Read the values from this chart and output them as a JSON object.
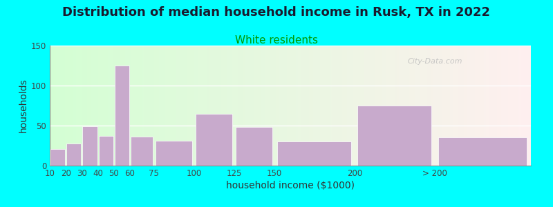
{
  "title": "Distribution of median household income in Rusk, TX in 2022",
  "subtitle": "White residents",
  "xlabel": "household income ($1000)",
  "ylabel": "households",
  "background_outer": "#00FFFF",
  "bar_color": "#C8AACC",
  "bar_edgecolor": "#FFFFFF",
  "tick_labels": [
    "10",
    "20",
    "30",
    "40",
    "50",
    "60",
    "75",
    "100",
    "125",
    "150",
    "200",
    "> 200"
  ],
  "tick_positions": [
    10,
    20,
    30,
    40,
    50,
    60,
    75,
    100,
    125,
    150,
    200,
    250
  ],
  "bar_centers": [
    15,
    25,
    35,
    45,
    55,
    67.5,
    87.5,
    112.5,
    137.5,
    175,
    225,
    280
  ],
  "bar_widths": [
    10,
    10,
    10,
    10,
    10,
    15,
    25,
    25,
    25,
    50,
    50,
    60
  ],
  "values": [
    21,
    28,
    49,
    37,
    125,
    36,
    31,
    65,
    48,
    30,
    75,
    35
  ],
  "ylim": [
    0,
    150
  ],
  "yticks": [
    0,
    50,
    100,
    150
  ],
  "xlim": [
    10,
    310
  ],
  "title_fontsize": 13,
  "subtitle_fontsize": 11,
  "subtitle_color": "#009900",
  "axis_label_fontsize": 10,
  "tick_fontsize": 8.5,
  "watermark": "City-Data.com",
  "plot_bg_left": "#CCFFCC",
  "plot_bg_right": "#FFF0F0"
}
